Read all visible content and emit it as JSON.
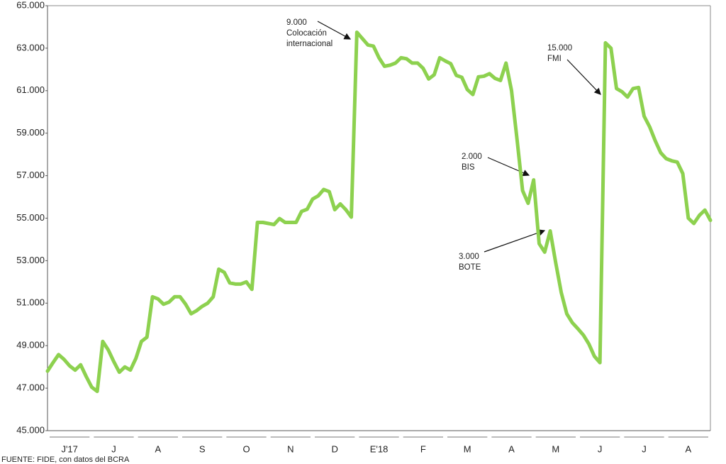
{
  "chart_data": {
    "type": "line",
    "months": [
      "J'17",
      "J",
      "A",
      "S",
      "O",
      "N",
      "D",
      "E'18",
      "F",
      "M",
      "A",
      "M",
      "J",
      "J",
      "A"
    ],
    "series": [
      {
        "color": "#8dd14f",
        "values": [
          47800,
          48200,
          48580,
          48350,
          48050,
          47850,
          48100,
          47550,
          47050,
          46850,
          49200,
          48800,
          48250,
          47750,
          48000,
          47850,
          48400,
          49200,
          49400,
          51300,
          51200,
          50950,
          51050,
          51300,
          51300,
          50950,
          50500,
          50650,
          50850,
          51000,
          51300,
          52600,
          52450,
          51950,
          51900,
          51900,
          52000,
          51650,
          54800,
          54800,
          54750,
          54700,
          54980,
          54800,
          54800,
          54800,
          55320,
          55420,
          55900,
          56050,
          56350,
          56250,
          55400,
          55670,
          55400,
          55050,
          63750,
          63450,
          63150,
          63100,
          62550,
          62150,
          62200,
          62300,
          62550,
          62500,
          62300,
          62300,
          62050,
          61550,
          61750,
          62550,
          62400,
          62270,
          61720,
          61630,
          61050,
          60820,
          61650,
          61680,
          61800,
          61580,
          61480,
          62300,
          61000,
          58700,
          56300,
          55700,
          56800,
          53800,
          53400,
          54400,
          52900,
          51500,
          50500,
          50080,
          49800,
          49500,
          49080,
          48500,
          48200,
          63250,
          63000,
          61100,
          60950,
          60700,
          61100,
          61150,
          59800,
          59300,
          58650,
          58080,
          57800,
          57700,
          57640,
          57100,
          55000,
          54750,
          55130,
          55380,
          54900
        ]
      }
    ],
    "ylim": [
      45000,
      65000
    ],
    "yticks": [
      {
        "value": 45000,
        "label": "45.000"
      },
      {
        "value": 47000,
        "label": "47.000"
      },
      {
        "value": 49000,
        "label": "49.000"
      },
      {
        "value": 51000,
        "label": "51.000"
      },
      {
        "value": 53000,
        "label": "53.000"
      },
      {
        "value": 55000,
        "label": "55.000"
      },
      {
        "value": 57000,
        "label": "57.000"
      },
      {
        "value": 59000,
        "label": "59.000"
      },
      {
        "value": 61000,
        "label": "61.000"
      },
      {
        "value": 63000,
        "label": "63.000"
      },
      {
        "value": 65000,
        "label": "65.000"
      }
    ],
    "annotations": [
      {
        "lines": [
          "9.000",
          "Colocación",
          "internacional"
        ]
      },
      {
        "lines": [
          "15.000",
          "FMI"
        ]
      },
      {
        "lines": [
          "2.000",
          "BIS"
        ]
      },
      {
        "lines": [
          "3.000",
          "BOTE"
        ]
      }
    ],
    "source": "FUENTE: FIDE, con datos del BCRA"
  }
}
